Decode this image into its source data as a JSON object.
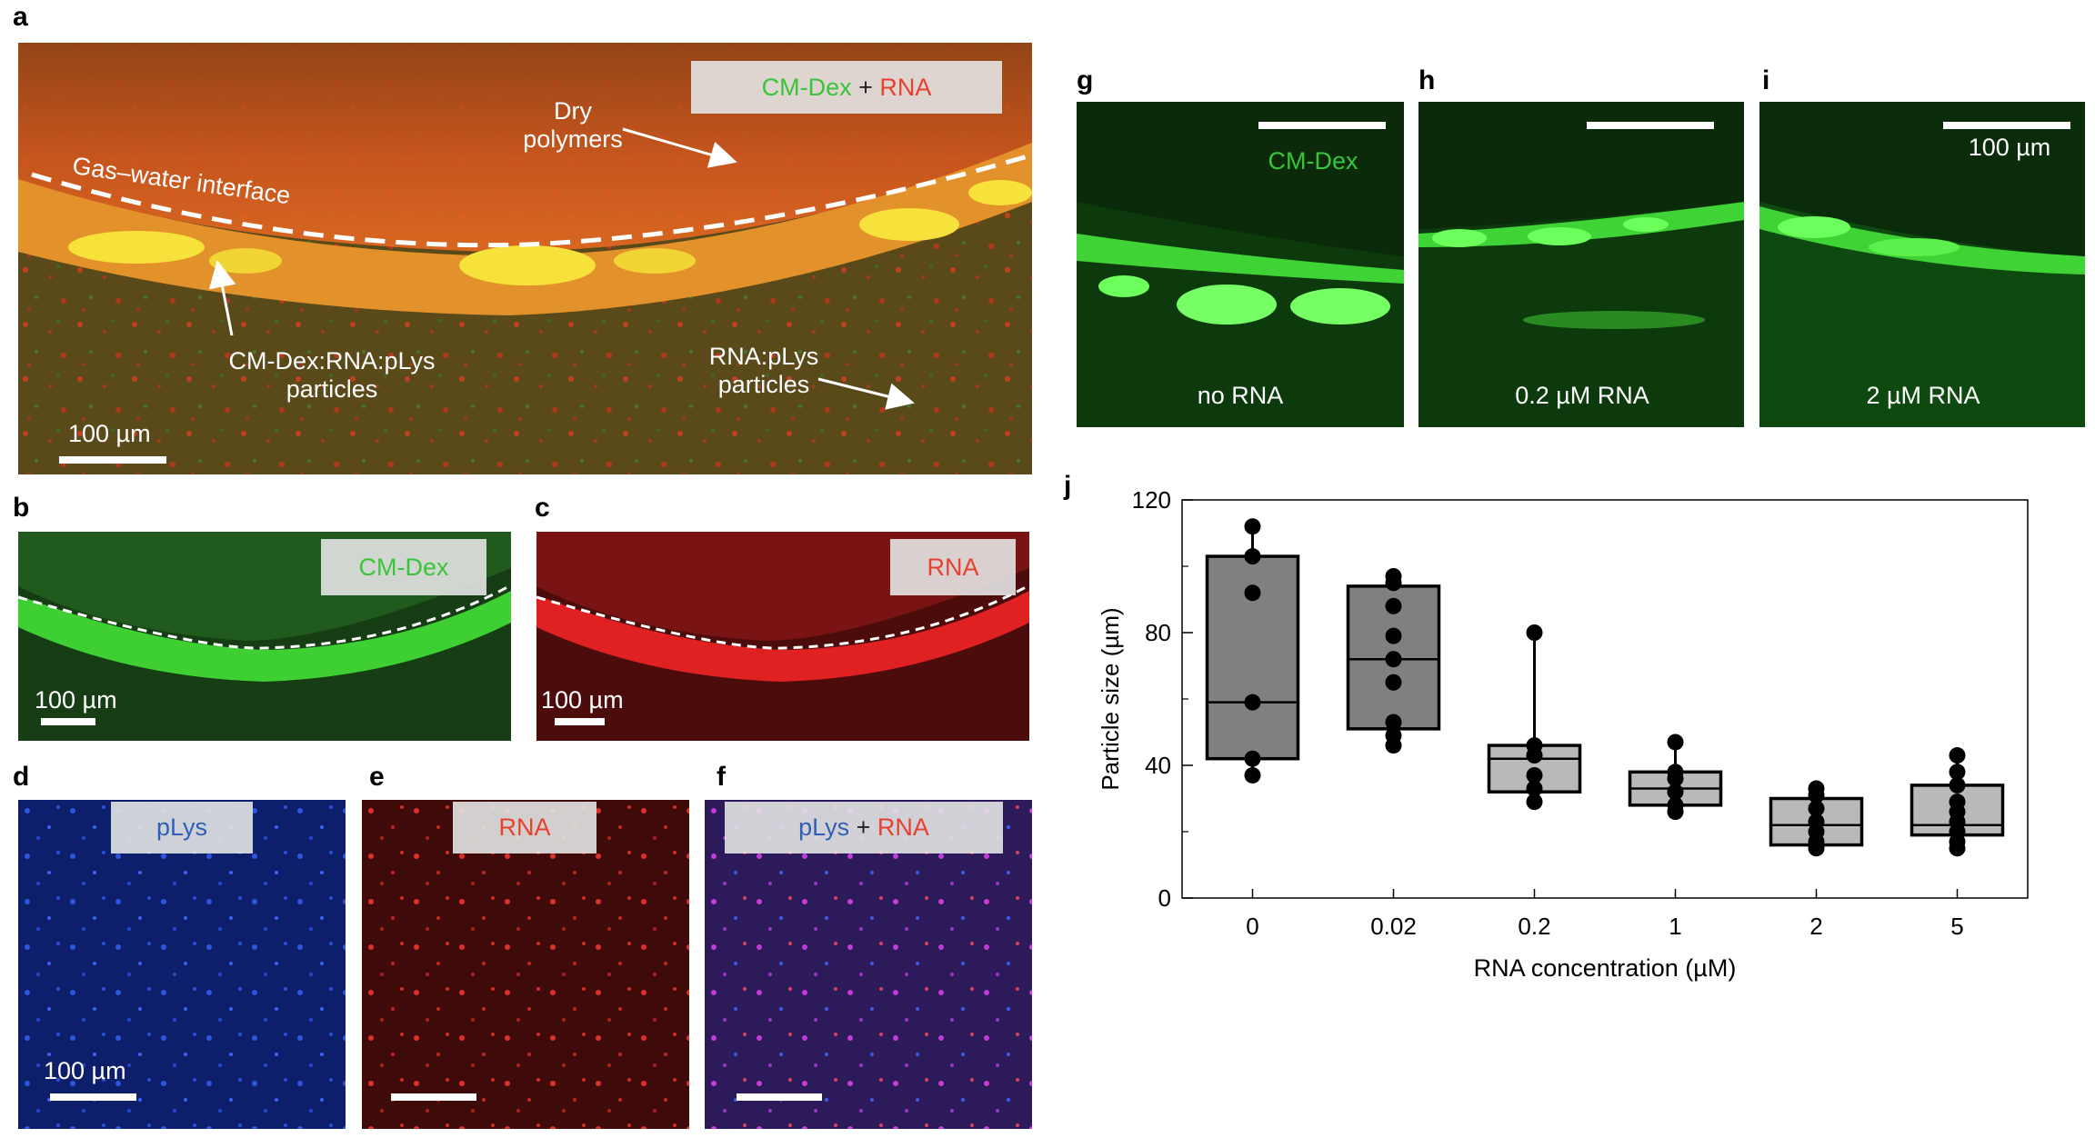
{
  "panels": {
    "a": {
      "letter": "a",
      "label": {
        "part1": "CM-Dex",
        "plus": " + ",
        "part2": "RNA"
      },
      "dry_polymers": "Dry\npolymers",
      "interface": "Gas–water interface",
      "particles_main": "CM-Dex:RNA:pLys\nparticles",
      "particles_rna": "RNA:pLys\nparticles",
      "scale": "100 µm"
    },
    "b": {
      "letter": "b",
      "label": "CM-Dex",
      "scale": "100 µm"
    },
    "c": {
      "letter": "c",
      "label": "RNA",
      "scale": "100 µm"
    },
    "d": {
      "letter": "d",
      "label": "pLys",
      "scale": "100 µm"
    },
    "e": {
      "letter": "e",
      "label": "RNA"
    },
    "f": {
      "letter": "f",
      "label": {
        "part1": "pLys",
        "plus": " + ",
        "part2": "RNA"
      }
    },
    "g": {
      "letter": "g",
      "label": "CM-Dex",
      "caption": "no RNA"
    },
    "h": {
      "letter": "h",
      "caption": "0.2 µM RNA"
    },
    "i": {
      "letter": "i",
      "caption": "2 µM RNA",
      "scale": "100 µm"
    },
    "j": {
      "letter": "j"
    }
  },
  "colors": {
    "green": "#39c43a",
    "red": "#e8402e",
    "blue": "#2f5fb8",
    "box_dark": "#808080",
    "box_light": "#b9b9b9"
  },
  "chart_data": {
    "type": "box",
    "xlabel": "RNA concentration (µM)",
    "ylabel": "Particle size (µm)",
    "ylim": [
      0,
      120
    ],
    "yticks": [
      0,
      40,
      80,
      120
    ],
    "categories": [
      "0",
      "0.02",
      "0.2",
      "1",
      "2",
      "5"
    ],
    "boxes": [
      {
        "q1": 42,
        "median": 59,
        "q3": 103,
        "whisker_low": 37,
        "whisker_high": 112,
        "points": [
          37,
          42,
          59,
          92,
          103,
          112
        ]
      },
      {
        "q1": 51,
        "median": 72,
        "q3": 94,
        "whisker_low": 46,
        "whisker_high": 97,
        "points": [
          46,
          49,
          53,
          65,
          72,
          79,
          88,
          95,
          97
        ]
      },
      {
        "q1": 32,
        "median": 42,
        "q3": 46,
        "whisker_low": 29,
        "whisker_high": 80,
        "points": [
          29,
          33,
          37,
          43,
          46,
          80
        ]
      },
      {
        "q1": 28,
        "median": 33,
        "q3": 38,
        "whisker_low": 26,
        "whisker_high": 47,
        "points": [
          26,
          28,
          32,
          36,
          38,
          47
        ]
      },
      {
        "q1": 16,
        "median": 22,
        "q3": 30,
        "whisker_low": 15,
        "whisker_high": 33,
        "points": [
          15,
          17,
          20,
          23,
          27,
          31,
          33
        ]
      },
      {
        "q1": 19,
        "median": 22,
        "q3": 34,
        "whisker_low": 15,
        "whisker_high": 43,
        "points": [
          15,
          17,
          20,
          23,
          26,
          29,
          34,
          38,
          43
        ]
      }
    ],
    "box_colors": [
      "dark",
      "dark",
      "light",
      "light",
      "light",
      "light"
    ]
  }
}
